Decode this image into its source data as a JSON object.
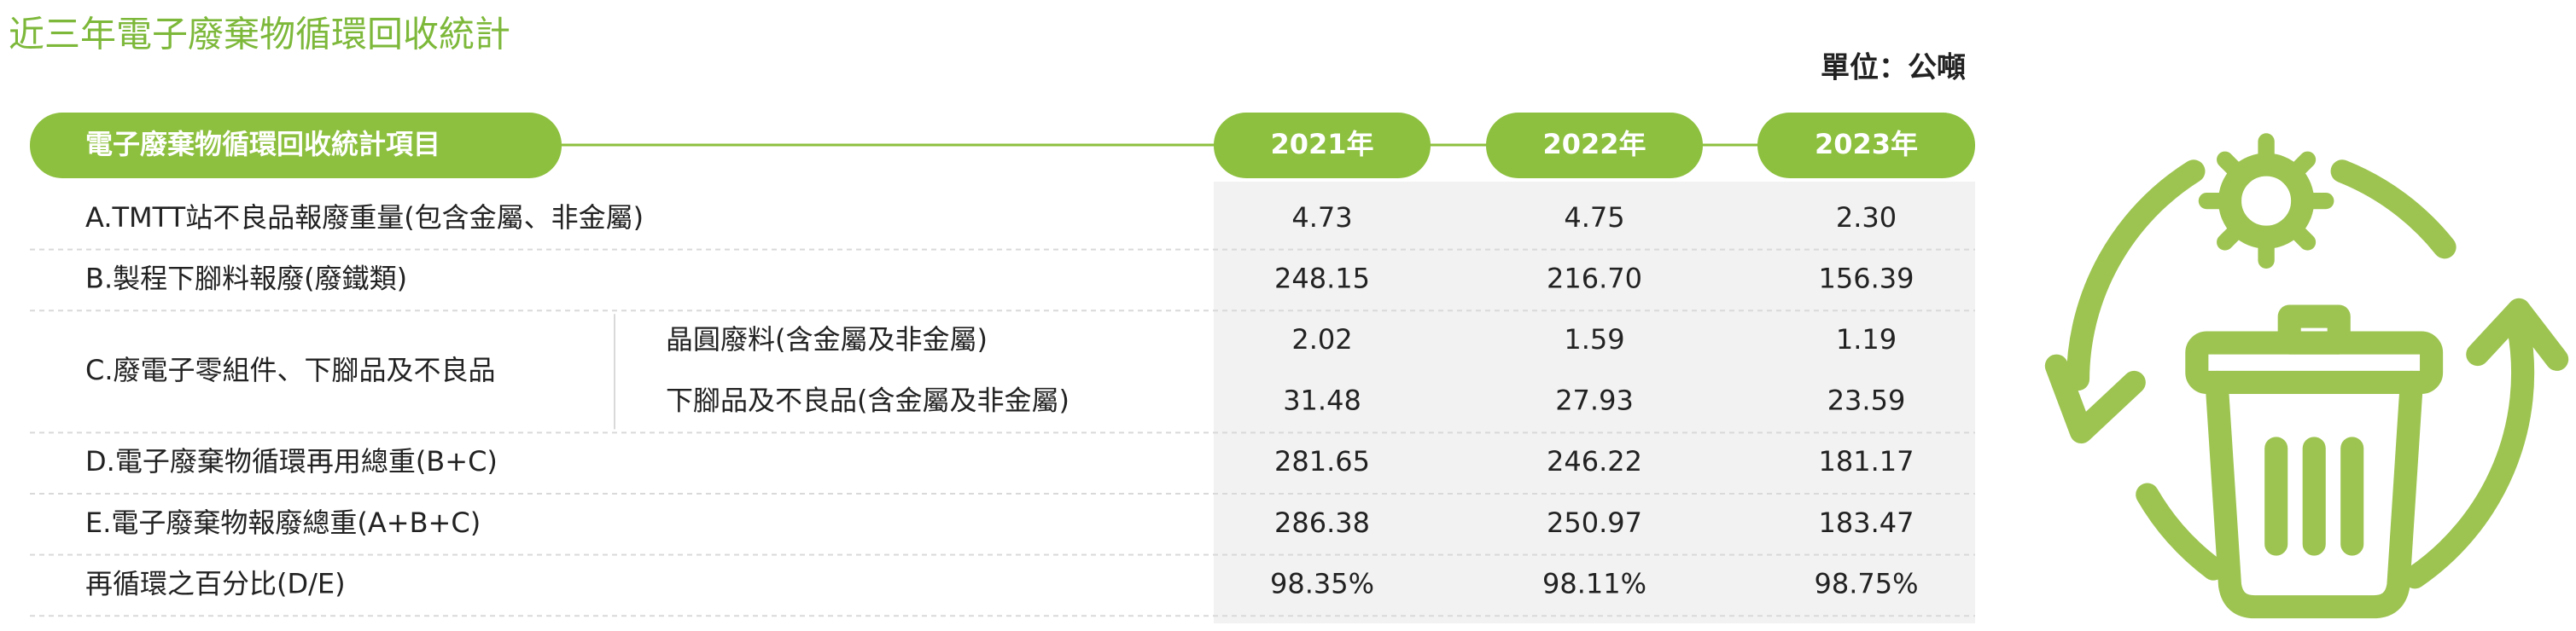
{
  "title": "近三年電子廢棄物循環回收統計",
  "unit": "單位：公噸",
  "header": {
    "item": "電子廢棄物循環回收統計項目",
    "years": [
      "2021年",
      "2022年",
      "2023年"
    ]
  },
  "rows": [
    {
      "label": "A.TMTT站不良品報廢重量(包含金屬、非金屬)",
      "values": [
        "4.73",
        "4.75",
        "2.30"
      ]
    },
    {
      "label": "B.製程下腳料報廢(廢鐵類)",
      "values": [
        "248.15",
        "216.70",
        "156.39"
      ]
    },
    {
      "label": "C.廢電子零組件、下腳品及不良品",
      "items": [
        {
          "label": "晶圓廢料(含金屬及非金屬)",
          "values": [
            "2.02",
            "1.59",
            "1.19"
          ]
        },
        {
          "label": "下腳品及不良品(含金屬及非金屬)",
          "values": [
            "31.48",
            "27.93",
            "23.59"
          ]
        }
      ]
    },
    {
      "label": "D.電子廢棄物循環再用總重(B+C)",
      "values": [
        "281.65",
        "246.22",
        "181.17"
      ]
    },
    {
      "label": "E.電子廢棄物報廢總重(A+B+C)",
      "values": [
        "286.38",
        "250.97",
        "183.47"
      ]
    },
    {
      "label": "再循環之百分比(D/E)",
      "values": [
        "98.35%",
        "98.11%",
        "98.75%"
      ]
    }
  ]
}
